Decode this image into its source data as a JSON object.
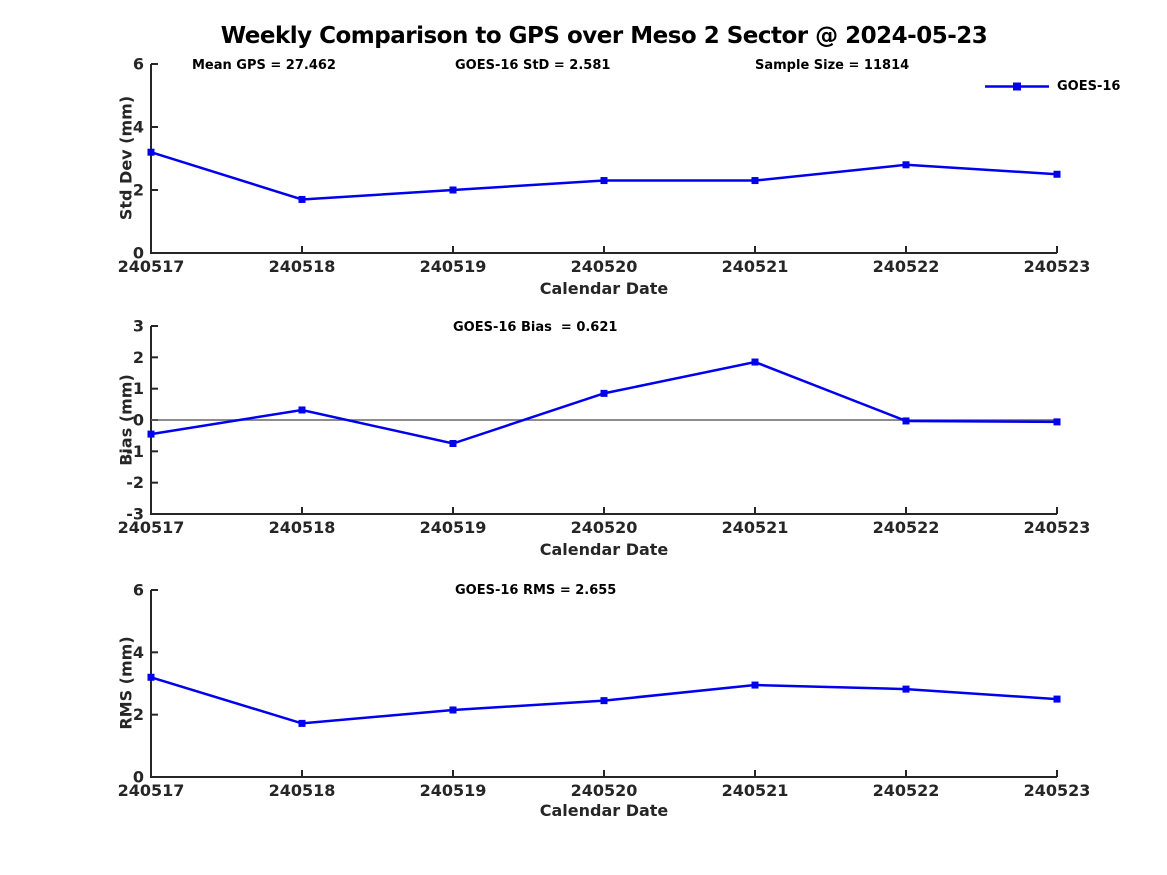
{
  "title": "Weekly Comparison to GPS over Meso 2 Sector @ 2024-05-23",
  "legend": {
    "label": "GOES-16",
    "position": "top-right"
  },
  "colors": {
    "line": "#0000EE",
    "marker": "#0000EE",
    "axis": "#262626",
    "tick_text": "#262626",
    "zero_line": "#666666"
  },
  "chart_data": [
    {
      "type": "line",
      "ylabel": "Std Dev (mm)",
      "xlabel": "Calendar Date",
      "categories": [
        "240517",
        "240518",
        "240519",
        "240520",
        "240521",
        "240522",
        "240523"
      ],
      "series": [
        {
          "name": "GOES-16",
          "values": [
            3.2,
            1.7,
            2.0,
            2.3,
            2.3,
            2.8,
            2.5
          ]
        }
      ],
      "ylim": [
        0,
        6
      ],
      "yticks": [
        0,
        2,
        4,
        6
      ],
      "grid": false,
      "annotations": [
        {
          "text": "Mean GPS = 27.462"
        },
        {
          "text": "GOES-16 StD = 2.581"
        },
        {
          "text": "Sample Size = 11814"
        }
      ]
    },
    {
      "type": "line",
      "ylabel": "Bias (mm)",
      "xlabel": "Calendar Date",
      "categories": [
        "240517",
        "240518",
        "240519",
        "240520",
        "240521",
        "240522",
        "240523"
      ],
      "series": [
        {
          "name": "GOES-16",
          "values": [
            -0.45,
            0.32,
            -0.75,
            0.85,
            1.85,
            -0.03,
            -0.06
          ]
        }
      ],
      "ylim": [
        -3,
        3
      ],
      "yticks": [
        -3,
        -2,
        -1,
        0,
        1,
        2,
        3
      ],
      "zero_line": true,
      "grid": false,
      "annotations": [
        {
          "text": "GOES-16 Bias  = 0.621"
        }
      ]
    },
    {
      "type": "line",
      "ylabel": "RMS (mm)",
      "xlabel": "Calendar Date",
      "categories": [
        "240517",
        "240518",
        "240519",
        "240520",
        "240521",
        "240522",
        "240523"
      ],
      "series": [
        {
          "name": "GOES-16",
          "values": [
            3.2,
            1.72,
            2.15,
            2.45,
            2.95,
            2.82,
            2.5
          ]
        }
      ],
      "ylim": [
        0,
        6
      ],
      "yticks": [
        0,
        2,
        4,
        6
      ],
      "grid": false,
      "annotations": [
        {
          "text": "GOES-16 RMS = 2.655"
        }
      ]
    }
  ]
}
